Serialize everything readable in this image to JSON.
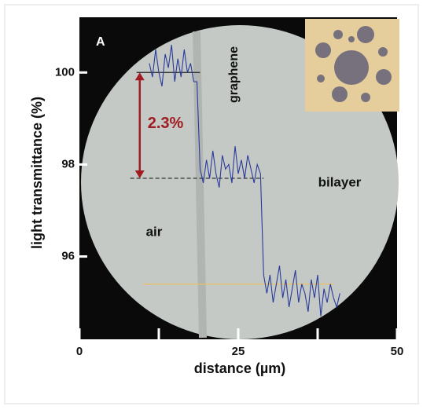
{
  "chart_data": {
    "type": "line",
    "panel_label": "A",
    "x_label": "distance (µm)",
    "y_label": "light  transmittance  (%)",
    "xlim": [
      0,
      50
    ],
    "xticks": [
      0,
      25,
      50
    ],
    "xminorticks": [
      12.5,
      37.5
    ],
    "ylim": [
      94.2,
      101.2
    ],
    "yticks": [
      96,
      98,
      100
    ],
    "x": [
      11,
      11.5,
      12,
      12.5,
      13,
      13.5,
      14,
      14.5,
      15,
      15.5,
      16,
      16.5,
      17,
      17.5,
      18,
      18.5,
      19,
      19.5,
      20,
      20.5,
      21,
      21.5,
      22,
      22.5,
      23,
      23.5,
      24,
      24.5,
      25,
      25.5,
      26,
      26.5,
      27,
      27.5,
      28,
      28.5,
      29,
      29.5,
      30,
      30.5,
      31,
      31.5,
      32,
      32.5,
      33,
      33.5,
      34,
      34.5,
      35,
      35.5,
      36,
      36.5,
      37,
      37.5,
      38,
      38.5,
      39,
      39.5,
      40,
      40.5,
      41
    ],
    "series": [
      {
        "color": "#2a3a9a",
        "values": [
          100.2,
          99.9,
          100.5,
          100.0,
          99.7,
          100.4,
          100.1,
          100.6,
          99.8,
          100.3,
          99.9,
          100.5,
          100.0,
          100.2,
          99.8,
          99.8,
          97.9,
          97.6,
          98.1,
          97.7,
          98.3,
          97.8,
          97.5,
          98.2,
          97.9,
          98.0,
          97.6,
          98.4,
          97.8,
          98.1,
          97.7,
          98.2,
          97.9,
          97.6,
          98.0,
          97.8,
          95.6,
          95.2,
          95.6,
          95.0,
          95.4,
          95.8,
          95.1,
          95.5,
          94.9,
          95.3,
          95.7,
          95.0,
          95.4,
          95.2,
          94.8,
          95.5,
          95.1,
          95.6,
          94.7,
          95.3,
          95.0,
          95.4,
          95.1,
          94.9,
          95.2
        ]
      }
    ],
    "reference_lines": [
      {
        "y": 100,
        "x": [
          9,
          19
        ],
        "style": "solid",
        "color": "#222222"
      },
      {
        "y": 97.7,
        "x": [
          8,
          29
        ],
        "style": "dashed",
        "color": "#333333"
      },
      {
        "y": 95.4,
        "x": [
          10,
          40
        ],
        "style": "solid",
        "color": "#e8c060"
      }
    ],
    "arrow": {
      "x": 9.5,
      "y": [
        100,
        97.7
      ],
      "label": "2.3%",
      "color": "#a01c22"
    },
    "annotations": [
      "graphene",
      "bilayer",
      "air"
    ]
  }
}
